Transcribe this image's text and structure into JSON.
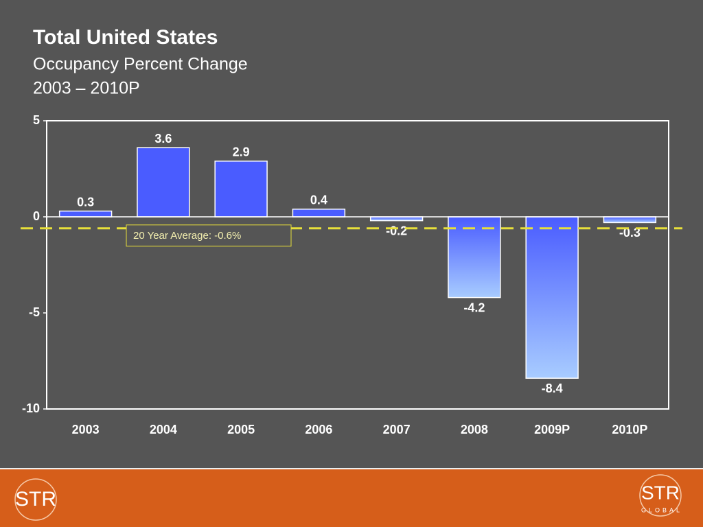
{
  "chart_data": {
    "type": "bar",
    "title": "Total United States",
    "subtitle": "Occupancy Percent Change",
    "subtitle_2": "2003 – 2010P",
    "categories": [
      "2003",
      "2004",
      "2005",
      "2006",
      "2007",
      "2008",
      "2009P",
      "2010P"
    ],
    "values": [
      0.3,
      3.6,
      2.9,
      0.4,
      -0.2,
      -4.2,
      -8.4,
      -0.3
    ],
    "color": "#4a5cff",
    "negative_color": "#a8ccff",
    "ylim": [
      -10,
      5
    ],
    "yticks": [
      5,
      0,
      -5,
      -10
    ],
    "grid": false,
    "reference_line": {
      "value": -0.6,
      "label": "20 Year Average: -0.6%",
      "color": "#e8e03a"
    }
  },
  "footer": {
    "logo_left": "STR",
    "logo_right": "STR",
    "logo_right_sub": "GLOBAL"
  }
}
